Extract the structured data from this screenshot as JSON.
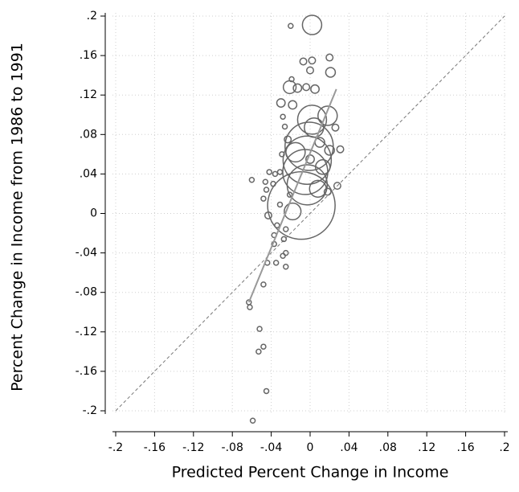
{
  "chart_data": {
    "type": "scatter",
    "x_label": "Predicted Percent Change in Income",
    "y_label": "Percent Change in Income from 1986 to 1991",
    "xlim": [
      -0.2,
      0.2
    ],
    "ylim": [
      -0.2,
      0.2
    ],
    "xticks": [
      {
        "value": -0.2,
        "label": "-.2"
      },
      {
        "value": -0.16,
        "label": "-.16"
      },
      {
        "value": -0.12,
        "label": "-.12"
      },
      {
        "value": -0.08,
        "label": "-.08"
      },
      {
        "value": -0.04,
        "label": "-.04"
      },
      0,
      {
        "value": 0.04,
        "label": ".04"
      },
      {
        "value": 0.08,
        "label": ".08"
      },
      {
        "value": 0.12,
        "label": ".12"
      },
      {
        "value": 0.16,
        "label": ".16"
      },
      {
        "value": 0.2,
        "label": ".2"
      }
    ],
    "yticks": [
      {
        "value": -0.2,
        "label": "-.2"
      },
      {
        "value": -0.16,
        "label": "-.16"
      },
      {
        "value": -0.12,
        "label": "-.12"
      },
      {
        "value": -0.08,
        "label": "-.08"
      },
      {
        "value": -0.04,
        "label": "-.04"
      },
      0,
      {
        "value": 0.04,
        "label": ".04"
      },
      {
        "value": 0.08,
        "label": ".08"
      },
      {
        "value": 0.12,
        "label": ".12"
      },
      {
        "value": 0.16,
        "label": ".16"
      },
      {
        "value": 0.2,
        "label": ".2"
      }
    ],
    "grid": true,
    "color": "#666666",
    "x": [
      0.002,
      -0.009,
      -0.003,
      -0.001,
      -0.005,
      0.002,
      -0.003,
      0.018,
      -0.021,
      -0.013,
      0.004,
      -0.015,
      -0.018,
      0.008,
      0.013,
      0.02,
      0.026,
      0.02,
      0.021,
      0.002,
      -0.007,
      0.0,
      0.005,
      -0.004,
      -0.018,
      -0.03,
      -0.028,
      -0.026,
      -0.02,
      -0.019,
      -0.023,
      -0.029,
      -0.031,
      -0.036,
      -0.042,
      -0.038,
      -0.046,
      -0.06,
      -0.045,
      -0.048,
      -0.031,
      -0.021,
      -0.043,
      -0.034,
      -0.025,
      -0.037,
      -0.027,
      -0.037,
      -0.025,
      -0.028,
      -0.035,
      -0.025,
      -0.044,
      -0.048,
      -0.063,
      -0.062,
      -0.052,
      -0.048,
      -0.053,
      -0.045,
      -0.059,
      0.031,
      0.028,
      0.018,
      0.0,
      0.01
    ],
    "values": [
      0.191,
      0.008,
      0.054,
      0.068,
      0.042,
      0.095,
      0.029,
      0.099,
      0.128,
      0.127,
      0.087,
      0.062,
      0.002,
      0.025,
      0.047,
      0.064,
      0.087,
      0.158,
      0.143,
      0.155,
      0.154,
      0.145,
      0.126,
      0.128,
      0.11,
      0.112,
      0.098,
      0.088,
      0.19,
      0.136,
      0.075,
      0.06,
      0.042,
      0.04,
      0.042,
      0.03,
      0.032,
      0.034,
      0.024,
      0.015,
      0.009,
      0.019,
      -0.002,
      -0.012,
      -0.016,
      -0.022,
      -0.026,
      -0.031,
      -0.04,
      -0.043,
      -0.05,
      -0.054,
      -0.05,
      -0.072,
      -0.09,
      -0.095,
      -0.117,
      -0.135,
      -0.14,
      -0.18,
      -0.21,
      0.065,
      0.028,
      0.022,
      0.055,
      0.072
    ],
    "sizes": [
      16,
      196,
      100,
      100,
      87,
      36,
      69,
      16,
      7,
      3,
      16,
      16,
      12,
      12,
      9,
      4,
      2,
      2,
      4,
      2,
      2,
      2,
      3,
      2,
      3,
      3,
      1,
      1,
      1,
      1,
      2,
      1,
      1,
      1,
      1,
      1,
      1,
      1,
      1,
      1,
      1,
      1,
      2,
      1,
      1,
      1,
      1,
      1,
      1,
      1,
      1,
      1,
      1,
      1,
      1,
      1,
      1,
      1,
      1,
      1,
      1,
      2,
      2,
      2,
      3,
      4
    ],
    "fit_line": {
      "color": "#999999",
      "x": [
        -0.063,
        0.027
      ],
      "y": [
        -0.09,
        0.126
      ]
    }
  }
}
